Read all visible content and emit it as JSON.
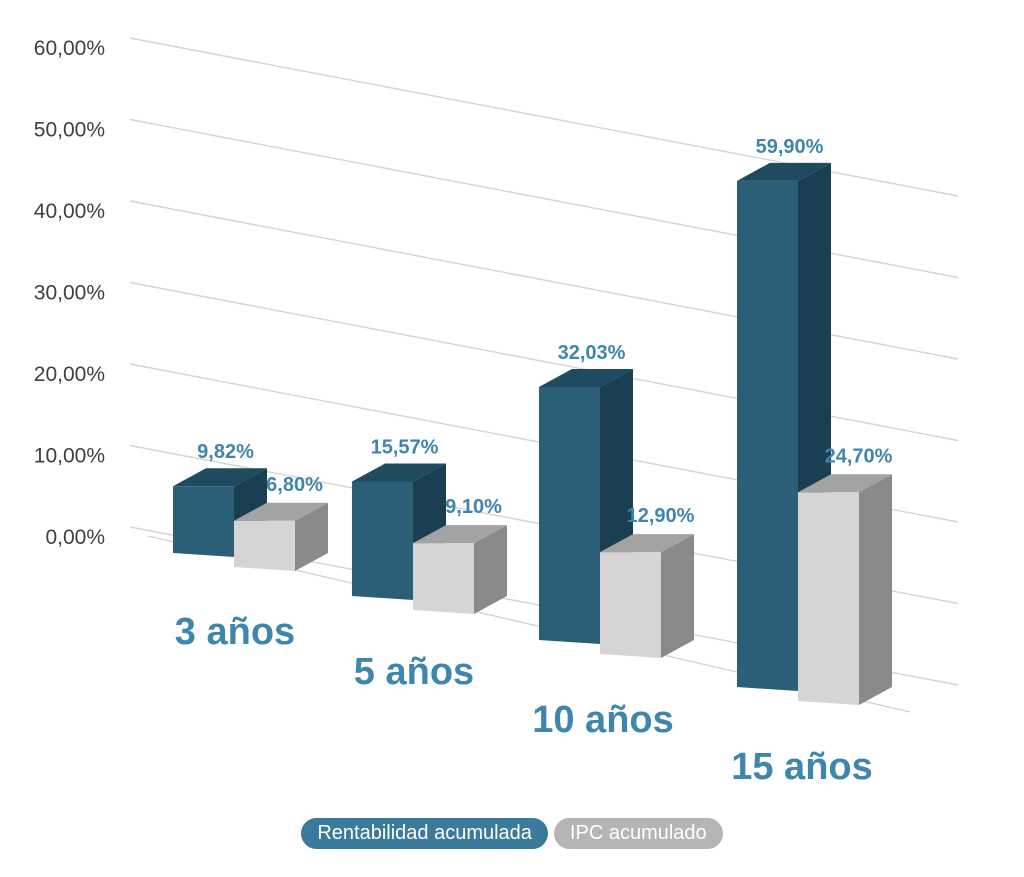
{
  "chart_data": {
    "type": "bar",
    "categories": [
      "3 años",
      "5 años",
      "10 años",
      "15 años"
    ],
    "series": [
      {
        "name": "Rentabilidad acumulada",
        "values": [
          9.82,
          15.57,
          32.03,
          59.9
        ],
        "labels": [
          "9,82%",
          "15,57%",
          "32,03%",
          "59,90%"
        ]
      },
      {
        "name": "IPC acumulado",
        "values": [
          6.8,
          9.1,
          12.9,
          24.7
        ],
        "labels": [
          "6,80%",
          "9,10%",
          "12,90%",
          "24,70%"
        ]
      }
    ],
    "y_ticks": [
      "0,00%",
      "10,00%",
      "20,00%",
      "30,00%",
      "40,00%",
      "50,00%",
      "60,00%"
    ],
    "ylim": [
      0,
      60
    ],
    "grid": true,
    "style": "3d-clustered-column",
    "legend_position": "bottom"
  },
  "colors": {
    "series1_front": "#2b5f78",
    "series1_side": "#1b3f52",
    "series1_top": "#1f4a60",
    "series2_front": "#d6d4d5",
    "series2_side": "#8a8a8a",
    "series2_top": "#a3a3a3",
    "legend1": "#3a7a9a",
    "legend2": "#b5b5b5",
    "grid": "#d4d4d4"
  }
}
